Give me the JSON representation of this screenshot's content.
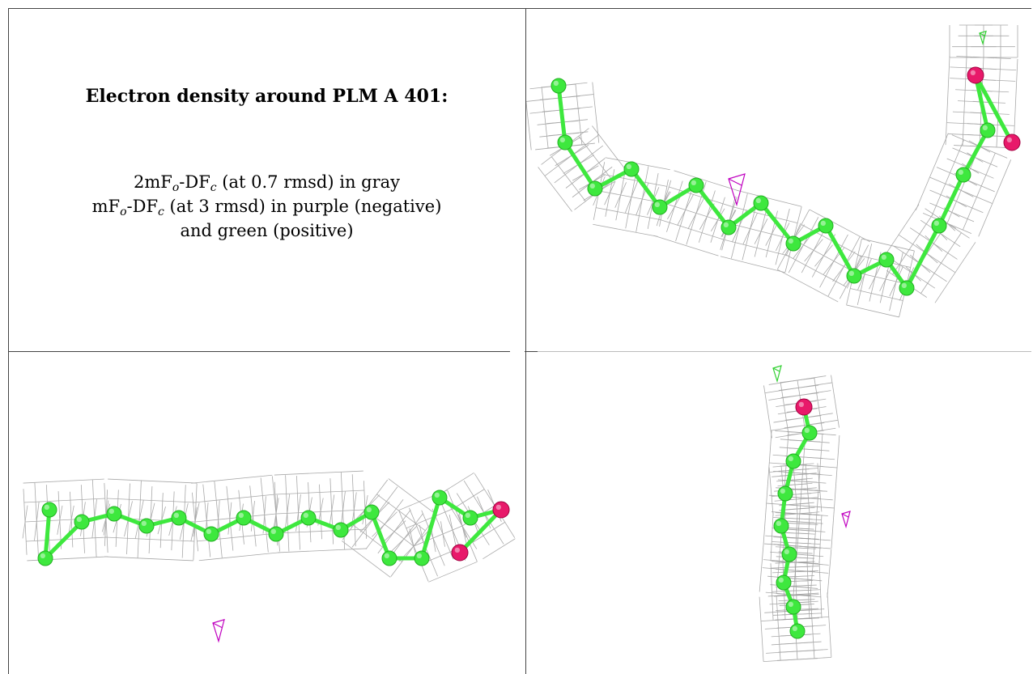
{
  "title": "Electron density around PLM A 401:",
  "caption": {
    "line1_prefix": "2mF",
    "line1_sub1": "o",
    "line1_mid": "-DF",
    "line1_sub2": "c",
    "line1_suffix": " (at 0.7 rmsd) in gray",
    "line2_prefix": "mF",
    "line2_sub1": "o",
    "line2_mid": "-DF",
    "line2_sub2": "c",
    "line2_suffix": " (at 3 rmsd) in purple (negative)",
    "line3": "and green (positive)"
  },
  "colors": {
    "carbon": "#3ee83e",
    "oxygen": "#e8196a",
    "mesh": "#9a9a9a",
    "negative": "#c000c0",
    "positive": "#30d030",
    "border": "#444444"
  }
}
